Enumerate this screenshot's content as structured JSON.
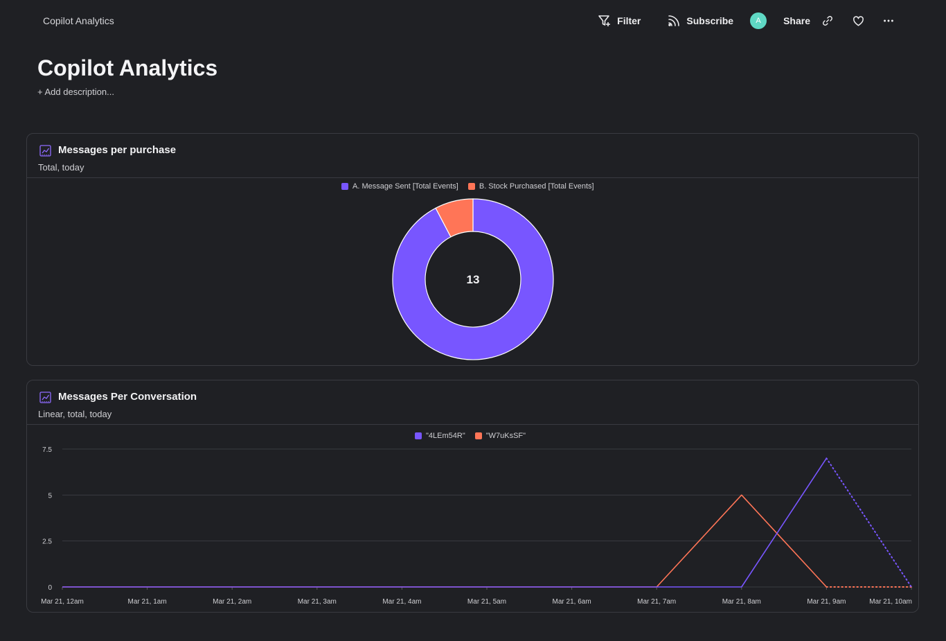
{
  "breadcrumb": "Copilot Analytics",
  "actions": {
    "filter": "Filter",
    "subscribe": "Subscribe",
    "avatar_initial": "A",
    "share": "Share"
  },
  "page": {
    "title": "Copilot Analytics",
    "add_description": "+ Add description..."
  },
  "colors": {
    "purple": "#7856ff",
    "orange": "#ff7557",
    "teal": "#5fd8c4"
  },
  "cards": [
    {
      "title": "Messages per purchase",
      "subtitle": "Total, today"
    },
    {
      "title": "Messages Per Conversation",
      "subtitle": "Linear, total, today"
    }
  ],
  "chart_data": [
    {
      "type": "pie",
      "variant": "donut",
      "center_label": "13",
      "legend": [
        "A. Message Sent [Total Events]",
        "B. Stock Purchased [Total Events]"
      ],
      "categories": [
        "A. Message Sent [Total Events]",
        "B. Stock Purchased [Total Events]"
      ],
      "values": [
        12,
        1
      ]
    },
    {
      "type": "line",
      "x": [
        "Mar 21, 12am",
        "Mar 21, 1am",
        "Mar 21, 2am",
        "Mar 21, 3am",
        "Mar 21, 4am",
        "Mar 21, 5am",
        "Mar 21, 6am",
        "Mar 21, 7am",
        "Mar 21, 8am",
        "Mar 21, 9am",
        "Mar 21, 10am"
      ],
      "yticks": [
        "0",
        "2.5",
        "5",
        "7.5"
      ],
      "ylim": [
        0,
        7.5
      ],
      "series": [
        {
          "name": "\"4LEm54R\"",
          "values": [
            0,
            0,
            0,
            0,
            0,
            0,
            0,
            0,
            0,
            7,
            0
          ],
          "dotted_last_segment": true
        },
        {
          "name": "\"W7uKsSF\"",
          "values": [
            0,
            0,
            0,
            0,
            0,
            0,
            0,
            0,
            5,
            0,
            0
          ],
          "dotted_last_segment": true
        }
      ]
    }
  ]
}
